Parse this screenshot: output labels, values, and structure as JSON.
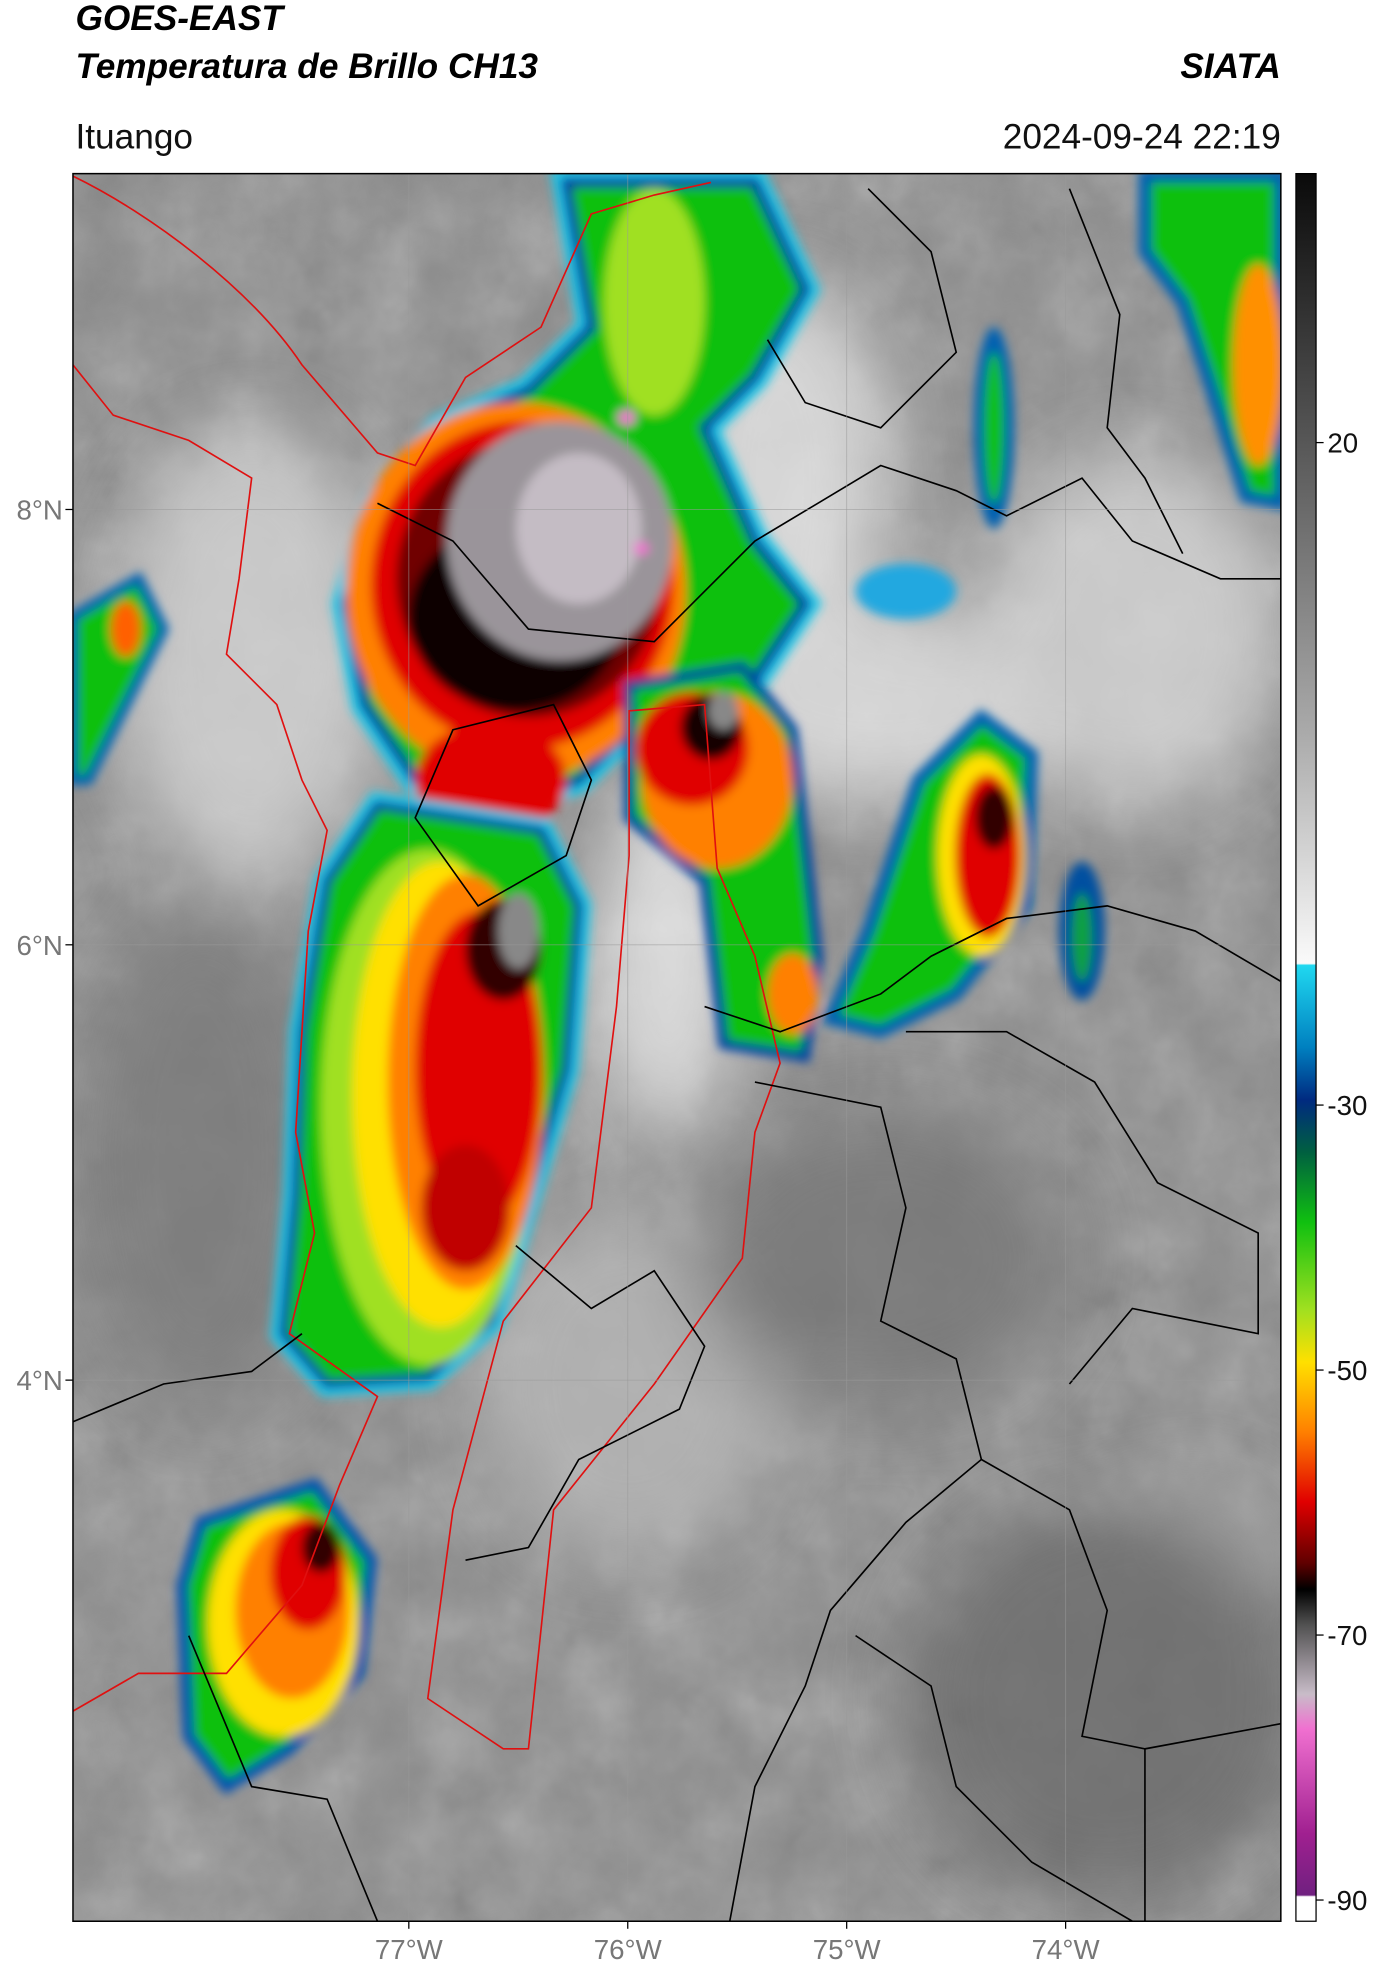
{
  "header": {
    "title": "GOES-EAST",
    "subtitle": "Temperatura de Brillo CH13",
    "source": "SIATA",
    "location": "Ituango",
    "datetime": "2024-09-24 22:19"
  },
  "map": {
    "latlim": [
      1.514,
      9.543
    ],
    "lonlim": [
      -78.534,
      -73.017
    ],
    "lat_ticks": [
      {
        "value": 8,
        "label": "8°N"
      },
      {
        "value": 6,
        "label": "6°N"
      },
      {
        "value": 4,
        "label": "4°N"
      }
    ],
    "lon_ticks": [
      {
        "value": -77,
        "label": "77°W"
      },
      {
        "value": -76,
        "label": "76°W"
      },
      {
        "value": -75,
        "label": "75°W"
      },
      {
        "value": -74,
        "label": "74°W"
      }
    ],
    "grid": true
  },
  "colorbar": {
    "lim": [
      -91.6,
      40.3
    ],
    "ticks": [
      20,
      -30,
      -50,
      -70,
      -90
    ]
  }
}
